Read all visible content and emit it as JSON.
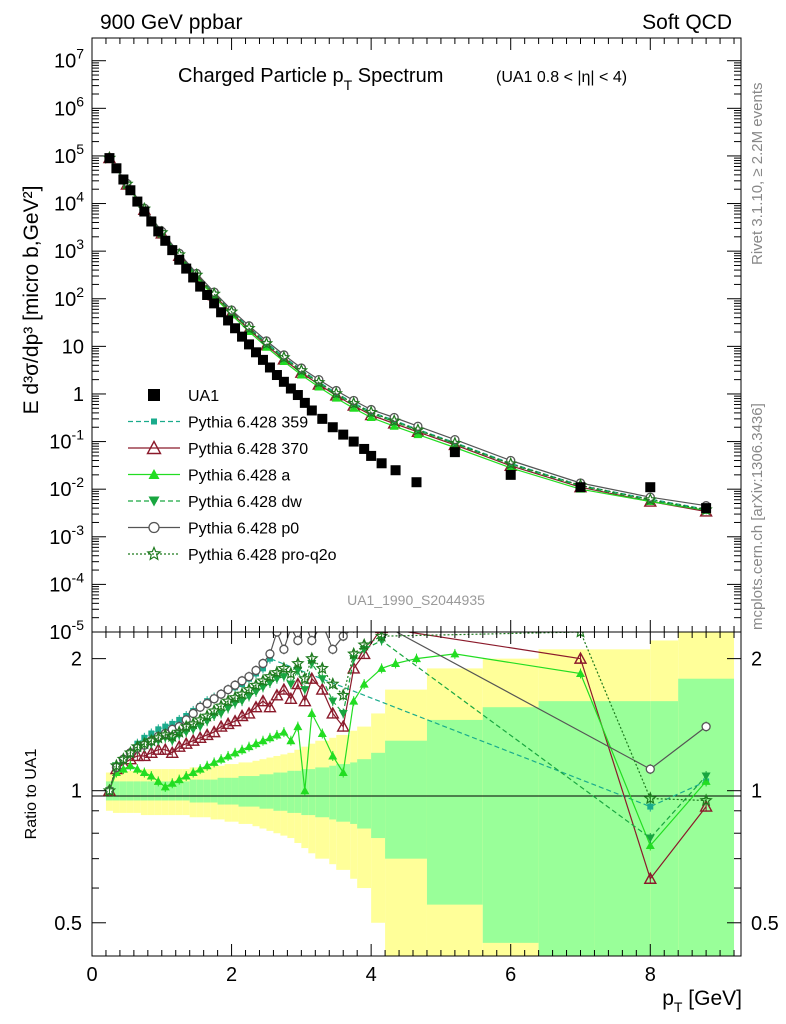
{
  "header": {
    "left": "900 GeV ppbar",
    "right": "Soft QCD"
  },
  "side_text": {
    "rivet": "Rivet 3.1.10, ≥ 2.2M events",
    "mcplots": "mcplots.cern.ch [arXiv:1306.3436]"
  },
  "chart_data": {
    "type": "scatter",
    "title": "Charged Particle p_T Spectrum",
    "title_text": "Charged Particle p",
    "title_sub": "T",
    "title_tail": " Spectrum",
    "title_cut": "(UA1 0.8 < |η| < 4)",
    "watermark": "UA1_1990_S2044935",
    "xlabel_main": "p",
    "xlabel_sub": "T",
    "xlabel_tail": " [GeV]",
    "ylabel_main": "E d³σ/dp³ [micro b,GeV²]",
    "ratio_ylabel": "Ratio to UA1",
    "xlim": [
      0,
      9.3
    ],
    "ylim_main": [
      1e-05,
      30000000.0
    ],
    "ylim_ratio": [
      0.42,
      2.3
    ],
    "x_ticks": [
      "0",
      "2",
      "4",
      "6",
      "8"
    ],
    "y_ticks_main": [
      "10^7",
      "10^6",
      "10^5",
      "10^4",
      "10^3",
      "10^2",
      "10",
      "1",
      "10^-1",
      "10^-2",
      "10^-3",
      "10^-4",
      "10^-5"
    ],
    "y_ticks_ratio": [
      "2",
      "1",
      "0.5"
    ],
    "legend": {
      "position": "center-left",
      "entries": [
        {
          "label": "UA1",
          "color": "#000000",
          "marker": "square-filled",
          "line": "none"
        },
        {
          "label": "Pythia 6.428 359",
          "color": "#1aab8c",
          "marker": "square-small",
          "line": "dashed"
        },
        {
          "label": "Pythia 6.428 370",
          "color": "#8b1a2b",
          "marker": "triangle-open",
          "line": "solid"
        },
        {
          "label": "Pythia 6.428 a",
          "color": "#22dd22",
          "marker": "triangle-filled",
          "line": "solid"
        },
        {
          "label": "Pythia 6.428 dw",
          "color": "#19a640",
          "marker": "triangle-down-filled",
          "line": "dashed"
        },
        {
          "label": "Pythia 6.428 p0",
          "color": "#555555",
          "marker": "circle-open",
          "line": "solid"
        },
        {
          "label": "Pythia 6.428 pro-q2o",
          "color": "#1e7a1e",
          "marker": "star-open",
          "line": "dotted"
        }
      ]
    },
    "data_x": [
      0.25,
      0.35,
      0.45,
      0.55,
      0.65,
      0.75,
      0.85,
      0.95,
      1.05,
      1.15,
      1.25,
      1.35,
      1.45,
      1.55,
      1.65,
      1.75,
      1.85,
      1.95,
      2.05,
      2.15,
      2.25,
      2.35,
      2.45,
      2.55,
      2.65,
      2.75,
      2.85,
      2.95,
      3.05,
      3.15,
      3.3,
      3.45,
      3.6,
      3.75,
      3.9,
      4.0,
      4.15,
      4.35,
      4.65,
      5.2,
      6.0,
      7.0,
      8.0,
      8.8
    ],
    "data_y": [
      90000,
      55000,
      32000,
      19000,
      11000,
      6800,
      4200,
      2600,
      1650,
      1050,
      660,
      430,
      280,
      180,
      120,
      80,
      52,
      35,
      24,
      16,
      11,
      7.5,
      5.2,
      3.6,
      2.5,
      1.8,
      1.3,
      0.95,
      0.65,
      0.45,
      0.3,
      0.2,
      0.14,
      0.1,
      0.07,
      0.05,
      0.035,
      0.025,
      0.014,
      0.06,
      0.02,
      0.011,
      0.011,
      0.004
    ],
    "series": [
      {
        "name": "Pythia 6.428 359",
        "x": [
          0.25,
          0.5,
          0.75,
          1.0,
          1.25,
          1.5,
          1.75,
          2.0,
          2.25,
          2.5,
          2.75,
          3.0,
          3.25,
          3.5,
          3.75,
          4.0,
          4.33,
          4.67,
          5.2,
          6.0,
          7.0,
          8.0,
          8.8
        ],
        "y": [
          90000,
          26000,
          7800,
          2500,
          860,
          320,
          130,
          55,
          25,
          12,
          6,
          3.2,
          1.8,
          1.05,
          0.65,
          0.42,
          0.28,
          0.18,
          0.095,
          0.035,
          0.012,
          0.0062,
          0.0038
        ]
      },
      {
        "name": "Pythia 6.428 370",
        "x": [
          0.25,
          0.5,
          0.75,
          1.0,
          1.25,
          1.5,
          1.75,
          2.0,
          2.25,
          2.5,
          2.75,
          3.0,
          3.25,
          3.5,
          3.75,
          4.0,
          4.33,
          4.67,
          5.2,
          6.0,
          7.0,
          8.0,
          8.8
        ],
        "y": [
          90000,
          25000,
          7400,
          2350,
          800,
          295,
          118,
          50,
          22.5,
          10.5,
          5.3,
          2.8,
          1.58,
          0.93,
          0.57,
          0.36,
          0.24,
          0.16,
          0.085,
          0.031,
          0.011,
          0.0055,
          0.0034
        ]
      },
      {
        "name": "Pythia 6.428 a",
        "x": [
          0.25,
          0.5,
          0.75,
          1.0,
          1.25,
          1.5,
          1.75,
          2.0,
          2.25,
          2.5,
          2.75,
          3.0,
          3.25,
          3.5,
          3.75,
          4.0,
          4.33,
          4.67,
          5.2,
          6.0,
          7.0,
          8.0,
          8.8
        ],
        "y": [
          90000,
          24800,
          7300,
          2300,
          760,
          280,
          110,
          46,
          20.5,
          9.6,
          4.8,
          2.5,
          1.4,
          0.82,
          0.5,
          0.32,
          0.21,
          0.14,
          0.075,
          0.028,
          0.01,
          0.0055,
          0.0036
        ]
      },
      {
        "name": "Pythia 6.428 dw",
        "x": [
          0.25,
          0.5,
          0.75,
          1.0,
          1.25,
          1.5,
          1.75,
          2.0,
          2.25,
          2.5,
          2.75,
          3.0,
          3.25,
          3.5,
          3.75,
          4.0,
          4.33,
          4.67,
          5.2,
          6.0,
          7.0,
          8.0,
          8.8
        ],
        "y": [
          90000,
          25500,
          7600,
          2420,
          830,
          310,
          124,
          52,
          23.5,
          11,
          5.6,
          3.0,
          1.68,
          0.98,
          0.6,
          0.39,
          0.26,
          0.17,
          0.09,
          0.033,
          0.0115,
          0.0058,
          0.0036
        ]
      },
      {
        "name": "Pythia 6.428 p0",
        "x": [
          0.25,
          0.5,
          0.75,
          1.0,
          1.25,
          1.5,
          1.75,
          2.0,
          2.25,
          2.5,
          2.75,
          3.0,
          3.25,
          3.5,
          3.75,
          4.0,
          4.33,
          4.67,
          5.2,
          6.0,
          7.0,
          8.0,
          8.8
        ],
        "y": [
          90000,
          26500,
          8000,
          2600,
          900,
          340,
          138,
          58,
          27,
          13,
          6.6,
          3.5,
          2.0,
          1.18,
          0.73,
          0.47,
          0.32,
          0.21,
          0.11,
          0.04,
          0.0135,
          0.0068,
          0.0045
        ]
      },
      {
        "name": "Pythia 6.428 pro-q2o",
        "x": [
          0.25,
          0.5,
          0.75,
          1.0,
          1.25,
          1.5,
          1.75,
          2.0,
          2.25,
          2.5,
          2.75,
          3.0,
          3.25,
          3.5,
          3.75,
          4.0,
          4.33,
          4.67,
          5.2,
          6.0,
          7.0,
          8.0,
          8.8
        ],
        "y": [
          90000,
          25700,
          7700,
          2450,
          840,
          315,
          126,
          53,
          24,
          11.4,
          5.8,
          3.1,
          1.74,
          1.02,
          0.63,
          0.41,
          0.27,
          0.175,
          0.092,
          0.034,
          0.012,
          0.006,
          0.0037
        ]
      }
    ],
    "ratio_series": [
      {
        "name": "Pythia 6.428 359",
        "x": [
          0.25,
          0.35,
          0.45,
          0.55,
          0.65,
          0.75,
          0.85,
          0.95,
          1.05,
          1.15,
          1.25,
          1.35,
          1.45,
          1.55,
          1.65,
          1.75,
          1.85,
          1.95,
          2.05,
          2.15,
          2.25,
          2.35,
          2.45,
          2.55,
          8.0,
          8.8
        ],
        "y": [
          1.0,
          1.12,
          1.18,
          1.22,
          1.28,
          1.32,
          1.35,
          1.38,
          1.4,
          1.42,
          1.45,
          1.48,
          1.52,
          1.56,
          1.6,
          1.63,
          1.66,
          1.7,
          1.72,
          1.75,
          1.8,
          1.85,
          1.9,
          2.0,
          0.92,
          1.05
        ]
      },
      {
        "name": "Pythia 6.428 370",
        "x": [
          0.25,
          0.35,
          0.45,
          0.55,
          0.65,
          0.75,
          0.85,
          0.95,
          1.05,
          1.15,
          1.25,
          1.35,
          1.45,
          1.55,
          1.65,
          1.75,
          1.85,
          1.95,
          2.05,
          2.15,
          2.25,
          2.35,
          2.45,
          2.55,
          2.65,
          2.75,
          2.85,
          2.95,
          3.05,
          3.15,
          3.3,
          3.45,
          3.6,
          3.75,
          3.9,
          4.15,
          7.0,
          8.0,
          8.8
        ],
        "y": [
          1.0,
          1.12,
          1.15,
          1.18,
          1.2,
          1.2,
          1.22,
          1.24,
          1.24,
          1.22,
          1.26,
          1.28,
          1.3,
          1.32,
          1.34,
          1.36,
          1.4,
          1.42,
          1.44,
          1.48,
          1.5,
          1.55,
          1.6,
          1.55,
          1.65,
          1.7,
          1.62,
          1.75,
          1.6,
          1.8,
          1.7,
          1.5,
          1.4,
          1.9,
          2.05,
          2.35,
          2.0,
          0.63,
          0.92
        ]
      },
      {
        "name": "Pythia 6.428 a",
        "x": [
          0.25,
          0.35,
          0.45,
          0.55,
          0.65,
          0.75,
          0.85,
          0.95,
          1.05,
          1.15,
          1.25,
          1.35,
          1.45,
          1.55,
          1.65,
          1.75,
          1.85,
          1.95,
          2.05,
          2.15,
          2.25,
          2.35,
          2.45,
          2.55,
          2.65,
          2.75,
          2.85,
          2.95,
          3.05,
          3.15,
          3.3,
          3.45,
          3.6,
          3.75,
          3.9,
          4.15,
          4.35,
          4.65,
          5.2,
          7.0,
          8.0,
          8.8
        ],
        "y": [
          1.0,
          1.1,
          1.12,
          1.14,
          1.12,
          1.1,
          1.08,
          1.05,
          1.02,
          1.04,
          1.06,
          1.08,
          1.1,
          1.12,
          1.14,
          1.16,
          1.18,
          1.2,
          1.22,
          1.24,
          1.26,
          1.28,
          1.3,
          1.32,
          1.34,
          1.36,
          1.3,
          1.4,
          1.0,
          1.5,
          1.35,
          1.2,
          1.1,
          1.6,
          1.75,
          1.9,
          1.95,
          2.0,
          2.05,
          1.85,
          0.75,
          1.05
        ]
      },
      {
        "name": "Pythia 6.428 dw",
        "x": [
          0.25,
          0.35,
          0.45,
          0.55,
          0.65,
          0.75,
          0.85,
          0.95,
          1.05,
          1.15,
          1.25,
          1.35,
          1.45,
          1.55,
          1.65,
          1.75,
          1.85,
          1.95,
          2.05,
          2.15,
          2.25,
          2.35,
          2.45,
          2.55,
          2.65,
          2.75,
          2.85,
          2.95,
          3.05,
          3.15,
          3.3,
          3.45,
          3.6,
          3.75,
          3.9,
          4.15,
          8.0,
          8.8
        ],
        "y": [
          1.0,
          1.14,
          1.17,
          1.21,
          1.24,
          1.26,
          1.28,
          1.3,
          1.32,
          1.3,
          1.34,
          1.36,
          1.38,
          1.4,
          1.44,
          1.48,
          1.5,
          1.54,
          1.58,
          1.6,
          1.64,
          1.68,
          1.72,
          1.76,
          1.8,
          1.82,
          1.75,
          1.88,
          1.7,
          1.95,
          1.8,
          1.6,
          1.5,
          2.0,
          2.1,
          2.2,
          0.78,
          1.08
        ]
      },
      {
        "name": "Pythia 6.428 p0",
        "x": [
          0.25,
          0.35,
          0.45,
          0.55,
          0.65,
          0.75,
          0.85,
          0.95,
          1.05,
          1.15,
          1.25,
          1.35,
          1.45,
          1.55,
          1.65,
          1.75,
          1.85,
          1.95,
          2.05,
          2.15,
          2.25,
          2.35,
          2.45,
          2.55,
          2.65,
          2.75,
          2.85,
          2.95,
          3.05,
          3.15,
          3.3,
          3.45,
          3.6,
          3.75,
          3.9,
          4.15,
          8.0,
          8.8
        ],
        "y": [
          1.0,
          1.13,
          1.18,
          1.22,
          1.25,
          1.27,
          1.3,
          1.33,
          1.35,
          1.38,
          1.4,
          1.45,
          1.5,
          1.55,
          1.58,
          1.62,
          1.66,
          1.7,
          1.74,
          1.78,
          1.82,
          1.88,
          1.95,
          2.05,
          2.3,
          2.1,
          2.35,
          2.2,
          2.4,
          2.2,
          2.4,
          2.1,
          2.25,
          2.35,
          2.4,
          2.4,
          1.12,
          1.4
        ]
      },
      {
        "name": "Pythia 6.428 pro-q2o",
        "x": [
          0.25,
          0.35,
          0.45,
          0.55,
          0.65,
          0.75,
          0.85,
          0.95,
          1.05,
          1.15,
          1.25,
          1.35,
          1.45,
          1.55,
          1.65,
          1.75,
          1.85,
          1.95,
          2.05,
          2.15,
          2.25,
          2.35,
          2.45,
          2.55,
          2.65,
          2.75,
          2.85,
          2.95,
          3.05,
          3.15,
          3.3,
          3.45,
          3.6,
          3.75,
          3.9,
          4.15,
          7.0,
          8.0,
          8.8
        ],
        "y": [
          1.0,
          1.14,
          1.18,
          1.22,
          1.26,
          1.28,
          1.3,
          1.32,
          1.34,
          1.33,
          1.36,
          1.4,
          1.42,
          1.45,
          1.48,
          1.52,
          1.56,
          1.6,
          1.63,
          1.66,
          1.7,
          1.74,
          1.78,
          1.82,
          1.86,
          1.9,
          1.85,
          1.95,
          1.8,
          2.0,
          1.9,
          1.75,
          1.65,
          2.05,
          2.15,
          2.25,
          2.3,
          0.96,
          0.95
        ]
      }
    ],
    "uncertainty_band": {
      "x_edges": [
        0.2,
        0.3,
        0.4,
        0.5,
        0.6,
        0.7,
        0.8,
        0.9,
        1.0,
        1.1,
        1.2,
        1.3,
        1.4,
        1.5,
        1.6,
        1.7,
        1.8,
        1.9,
        2.0,
        2.1,
        2.2,
        2.3,
        2.4,
        2.5,
        2.6,
        2.7,
        2.8,
        2.9,
        3.0,
        3.1,
        3.2,
        3.4,
        3.5,
        3.7,
        3.8,
        4.0,
        4.2,
        4.8,
        5.6,
        6.4,
        7.2,
        8.0,
        8.4,
        9.2
      ],
      "green_half": [
        0.05,
        0.05,
        0.05,
        0.05,
        0.05,
        0.05,
        0.05,
        0.05,
        0.05,
        0.05,
        0.05,
        0.05,
        0.06,
        0.06,
        0.06,
        0.06,
        0.07,
        0.07,
        0.07,
        0.08,
        0.08,
        0.08,
        0.09,
        0.09,
        0.1,
        0.1,
        0.11,
        0.11,
        0.12,
        0.12,
        0.13,
        0.14,
        0.15,
        0.16,
        0.18,
        0.22,
        0.3,
        0.45,
        0.55,
        0.6,
        0.6,
        0.6,
        0.8
      ],
      "yellow_half": [
        0.1,
        0.11,
        0.11,
        0.11,
        0.11,
        0.12,
        0.12,
        0.12,
        0.12,
        0.12,
        0.12,
        0.12,
        0.13,
        0.13,
        0.13,
        0.14,
        0.14,
        0.15,
        0.15,
        0.16,
        0.16,
        0.17,
        0.18,
        0.19,
        0.2,
        0.21,
        0.22,
        0.24,
        0.26,
        0.28,
        0.3,
        0.32,
        0.34,
        0.37,
        0.4,
        0.5,
        0.7,
        0.9,
        1.0,
        1.1,
        1.1,
        1.2,
        1.3
      ]
    }
  }
}
